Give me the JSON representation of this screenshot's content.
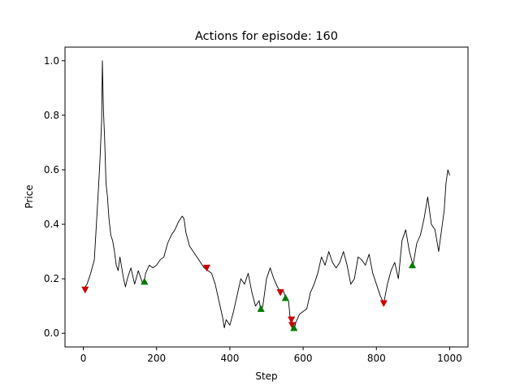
{
  "chart_data": {
    "type": "line",
    "title": "Actions for episode: 160",
    "xlabel": "Step",
    "ylabel": "Price",
    "xlim": [
      -50,
      1050
    ],
    "ylim": [
      -0.05,
      1.05
    ],
    "xticks": [
      0,
      200,
      400,
      600,
      800,
      1000
    ],
    "yticks": [
      0.0,
      0.2,
      0.4,
      0.6,
      0.8,
      1.0
    ],
    "ytick_labels": [
      "0.0",
      "0.2",
      "0.4",
      "0.6",
      "0.8",
      "1.0"
    ],
    "grid": false,
    "legend": "none",
    "colors": {
      "line": "#000000",
      "sell": "#cc0000",
      "buy": "#007a00"
    },
    "series": [
      {
        "type": "line",
        "x": [
          0,
          10,
          20,
          30,
          40,
          45,
          50,
          52,
          55,
          58,
          62,
          66,
          70,
          75,
          80,
          85,
          90,
          95,
          100,
          110,
          115,
          120,
          125,
          130,
          140,
          150,
          160,
          165,
          170,
          180,
          190,
          200,
          210,
          220,
          230,
          240,
          250,
          260,
          270,
          275,
          280,
          290,
          300,
          310,
          320,
          330,
          340,
          350,
          360,
          370,
          380,
          385,
          390,
          400,
          410,
          420,
          430,
          440,
          450,
          460,
          470,
          480,
          485,
          490,
          500,
          510,
          520,
          530,
          540,
          545,
          550,
          555,
          560,
          565,
          570,
          575,
          580,
          590,
          600,
          610,
          620,
          630,
          640,
          650,
          660,
          670,
          680,
          690,
          700,
          710,
          720,
          730,
          740,
          750,
          760,
          770,
          780,
          790,
          800,
          810,
          820,
          830,
          840,
          850,
          860,
          870,
          880,
          890,
          900,
          910,
          920,
          930,
          940,
          950,
          960,
          970,
          980,
          985,
          990,
          995,
          1000
        ],
        "y": [
          0.16,
          0.18,
          0.22,
          0.27,
          0.5,
          0.62,
          0.78,
          1.0,
          0.82,
          0.72,
          0.55,
          0.5,
          0.42,
          0.36,
          0.34,
          0.3,
          0.25,
          0.23,
          0.28,
          0.2,
          0.17,
          0.2,
          0.22,
          0.24,
          0.18,
          0.23,
          0.19,
          0.18,
          0.22,
          0.25,
          0.24,
          0.25,
          0.27,
          0.28,
          0.33,
          0.36,
          0.38,
          0.41,
          0.43,
          0.42,
          0.37,
          0.32,
          0.3,
          0.28,
          0.26,
          0.24,
          0.23,
          0.22,
          0.18,
          0.12,
          0.06,
          0.02,
          0.05,
          0.03,
          0.08,
          0.14,
          0.2,
          0.18,
          0.22,
          0.15,
          0.1,
          0.12,
          0.08,
          0.1,
          0.2,
          0.24,
          0.2,
          0.17,
          0.15,
          0.16,
          0.14,
          0.13,
          0.12,
          0.05,
          0.02,
          0.01,
          0.04,
          0.07,
          0.08,
          0.09,
          0.15,
          0.18,
          0.22,
          0.28,
          0.25,
          0.3,
          0.26,
          0.24,
          0.26,
          0.3,
          0.25,
          0.18,
          0.2,
          0.28,
          0.27,
          0.25,
          0.29,
          0.22,
          0.18,
          0.14,
          0.11,
          0.18,
          0.23,
          0.26,
          0.2,
          0.34,
          0.38,
          0.3,
          0.25,
          0.33,
          0.36,
          0.42,
          0.5,
          0.4,
          0.38,
          0.3,
          0.4,
          0.45,
          0.55,
          0.6,
          0.58
        ]
      }
    ],
    "markers": [
      {
        "action": "sell",
        "symbol": "down-triangle",
        "x": 5,
        "y": 0.16
      },
      {
        "action": "buy",
        "symbol": "up-triangle",
        "x": 167,
        "y": 0.19
      },
      {
        "action": "sell",
        "symbol": "down-triangle",
        "x": 337,
        "y": 0.24
      },
      {
        "action": "buy",
        "symbol": "up-triangle",
        "x": 485,
        "y": 0.09
      },
      {
        "action": "sell",
        "symbol": "down-triangle",
        "x": 538,
        "y": 0.15
      },
      {
        "action": "buy",
        "symbol": "up-triangle",
        "x": 552,
        "y": 0.13
      },
      {
        "action": "sell",
        "symbol": "down-triangle",
        "x": 568,
        "y": 0.05
      },
      {
        "action": "sell",
        "symbol": "down-triangle",
        "x": 570,
        "y": 0.03
      },
      {
        "action": "buy",
        "symbol": "up-triangle",
        "x": 575,
        "y": 0.02
      },
      {
        "action": "sell",
        "symbol": "down-triangle",
        "x": 820,
        "y": 0.11
      },
      {
        "action": "buy",
        "symbol": "up-triangle",
        "x": 898,
        "y": 0.25
      }
    ]
  }
}
